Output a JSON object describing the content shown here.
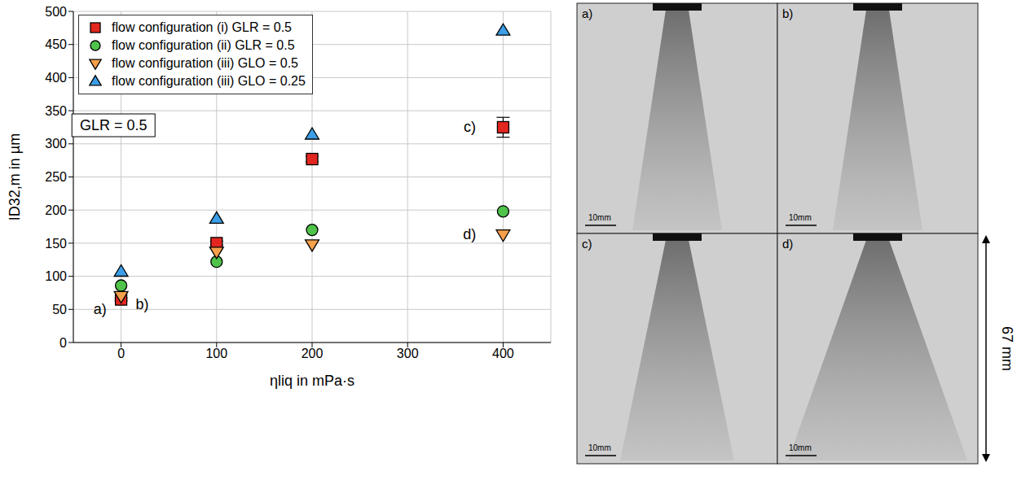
{
  "chart_data": {
    "type": "scatter",
    "x_label": "ηliq in mPa·s",
    "y_label": "ID32,m in µm",
    "xlim": [
      -50,
      450
    ],
    "xticks": [
      0,
      100,
      200,
      300,
      400
    ],
    "ylim": [
      0,
      500
    ],
    "yticks": [
      0,
      50,
      100,
      150,
      200,
      250,
      300,
      350,
      400,
      450,
      500
    ],
    "grid": true,
    "legend": "upper left",
    "x": [
      0,
      100,
      200,
      400
    ],
    "series": [
      {
        "name": "flow configuration (i) GLR = 0.5",
        "color": "#e3261f",
        "marker": "square",
        "values": [
          65,
          150,
          277,
          325
        ],
        "errors": [
          2,
          3,
          4,
          15
        ]
      },
      {
        "name": "flow configuration (ii) GLR = 0.5",
        "color": "#4fc34a",
        "marker": "circle",
        "values": [
          86,
          122,
          170,
          198
        ]
      },
      {
        "name": "flow configuration (iii) GLO = 0.5",
        "color": "#f6a04c",
        "marker": "triangle-down",
        "values": [
          70,
          137,
          148,
          163
        ]
      },
      {
        "name": "flow configuration (iii) GLO = 0.25",
        "color": "#3c9ee6",
        "marker": "triangle-up",
        "values": [
          107,
          187,
          314,
          471
        ]
      }
    ],
    "annotations": [
      {
        "text": "GLR = 0.5",
        "x": -8,
        "y": 328
      },
      {
        "text": "a)",
        "x": -22,
        "y": 50
      },
      {
        "text": "b)",
        "x": 22,
        "y": 58
      },
      {
        "text": "c)",
        "x": 365,
        "y": 325
      },
      {
        "text": "d)",
        "x": 365,
        "y": 163
      }
    ]
  },
  "image_panels": {
    "labels": [
      "a)",
      "b)",
      "c)",
      "d)"
    ],
    "scale_bar": "10mm",
    "height_label": "67 mm"
  }
}
